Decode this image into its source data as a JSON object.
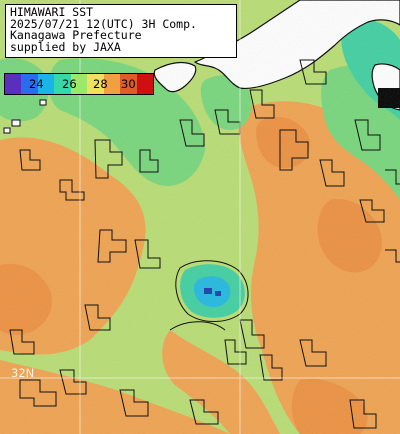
{
  "title": {
    "lines": [
      "HIMAWARI SST",
      "2025/07/21 12(UTC) 3H Comp.",
      "Kanagawa Prefecture",
      "supplied by JAXA"
    ]
  },
  "colorbar": {
    "ticks": [
      "24",
      "26",
      "28",
      "30"
    ],
    "colors": [
      "#5a2fbf",
      "#2a6cf0",
      "#1ab4e8",
      "#36d8a8",
      "#9ce86a",
      "#f0e060",
      "#f0a040",
      "#e05a2a",
      "#d01010"
    ]
  },
  "grid": {
    "lat_label": "32N"
  },
  "colors": {
    "land": "#ffffff",
    "coast": "#000000",
    "warm": "#f0a050",
    "mid": "#c8e070",
    "cool": "#5cd88a"
  }
}
